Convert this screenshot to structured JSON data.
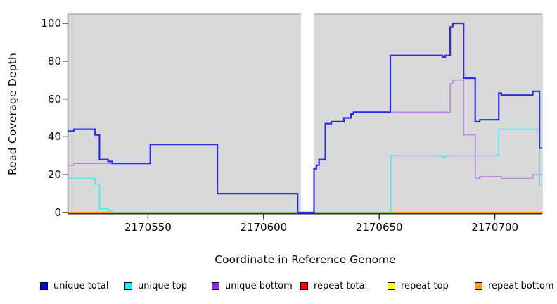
{
  "figure": {
    "y_axis_title": "Read Coverage Depth",
    "x_axis_title": "Coordinate in Reference Genome"
  },
  "legend": {
    "position": "bottom",
    "items": [
      {
        "label": "unique total",
        "color": "#0000ff"
      },
      {
        "label": "unique top",
        "color": "#00ffff"
      },
      {
        "label": "unique bottom",
        "color": "#8a2be2"
      },
      {
        "label": "repeat total",
        "color": "#ff0000"
      },
      {
        "label": "repeat top",
        "color": "#ffff00"
      },
      {
        "label": "repeat bottom",
        "color": "#ffa500"
      }
    ]
  },
  "chart_data": {
    "type": "line",
    "subtype": "step-coverage",
    "title": "",
    "xlabel": "Coordinate in Reference Genome",
    "ylabel": "Read Coverage Depth",
    "x_range": [
      2170515.5,
      2170720.5
    ],
    "y_range": [
      0,
      104.8
    ],
    "x_ticks": [
      2170550,
      2170600,
      2170650,
      2170700
    ],
    "y_ticks": [
      0,
      20,
      40,
      60,
      80,
      100
    ],
    "grid": false,
    "legend_position": "bottom",
    "colors": {
      "plot_background": "#d9d9d9",
      "figure_background": "#ffffff",
      "axis": "#1d1d1d",
      "border_top": "#b2b2b2",
      "border_right": "#c9c9c9",
      "gap_band": "#ffffff"
    },
    "gap_region": [
      2170616.2,
      2170621.8
    ],
    "series": [
      {
        "name": "repeat total",
        "color": "#dd0000",
        "width": 1.5,
        "note": "coverage 0 everywhere, hidden under other baseline lines",
        "paths": [
          [
            [
              2170515.5,
              0
            ],
            [
              2170720.5,
              0
            ]
          ]
        ]
      },
      {
        "name": "repeat top",
        "color": "#ffff00",
        "width": 1.5,
        "note": "coverage 0 everywhere, hidden under other baseline lines",
        "paths": [
          [
            [
              2170515.5,
              0
            ],
            [
              2170720.5,
              0
            ]
          ]
        ]
      },
      {
        "name": "baseline overlap (unique top + repeat top at 0)",
        "color": "#7cc27f",
        "width": 1.7,
        "note": "green blended line where cyan/yellow overlap at depth 0",
        "paths": [
          [
            [
              2170534.5,
              0
            ],
            [
              2170655,
              0
            ]
          ]
        ]
      },
      {
        "name": "repeat bottom",
        "color": "#ff9e05",
        "width": 2.2,
        "paths": [
          [
            [
              2170515.5,
              0
            ],
            [
              2170534.5,
              0
            ]
          ],
          [
            [
              2170655,
              0
            ],
            [
              2170720.5,
              0
            ]
          ]
        ]
      },
      {
        "name": "unique bottom",
        "color": "#b78ae0",
        "width": 1.7,
        "paths": [
          [
            [
              2170515.5,
              25
            ],
            [
              2170518,
              26
            ],
            [
              2170551,
              36
            ],
            [
              2170580,
              10
            ],
            [
              2170614.7,
              0
            ],
            [
              2170621.8,
              23
            ],
            [
              2170622.8,
              25
            ],
            [
              2170624,
              28
            ],
            [
              2170626.7,
              47
            ],
            [
              2170629.3,
              48
            ],
            [
              2170634.7,
              50
            ],
            [
              2170637.8,
              52
            ],
            [
              2170638.9,
              53
            ],
            [
              2170680.7,
              68
            ],
            [
              2170681.8,
              70
            ],
            [
              2170686.5,
              41
            ],
            [
              2170691.5,
              18
            ],
            [
              2170693.5,
              19
            ],
            [
              2170702.8,
              18
            ],
            [
              2170716.4,
              20
            ],
            [
              2170720.5,
              20
            ]
          ]
        ]
      },
      {
        "name": "unique top",
        "color": "#50e3ea",
        "width": 1.7,
        "paths": [
          [
            [
              2170515.5,
              18
            ],
            [
              2170527,
              15
            ],
            [
              2170529,
              2
            ],
            [
              2170532.7,
              1
            ],
            [
              2170534.5,
              0
            ]
          ],
          [
            [
              2170655,
              0
            ],
            [
              2170655,
              30
            ],
            [
              2170677.3,
              29
            ],
            [
              2170678.6,
              30
            ],
            [
              2170701.7,
              44
            ],
            [
              2170719.3,
              14
            ],
            [
              2170720.5,
              14
            ]
          ]
        ]
      },
      {
        "name": "unique total",
        "color": "#2b2be0",
        "width": 2.2,
        "paths": [
          [
            [
              2170515.5,
              43
            ],
            [
              2170518,
              44
            ],
            [
              2170527,
              41
            ],
            [
              2170529,
              28
            ],
            [
              2170532.7,
              27
            ],
            [
              2170534.5,
              26
            ],
            [
              2170551,
              36
            ],
            [
              2170580,
              10
            ],
            [
              2170614.7,
              0
            ],
            [
              2170621.8,
              23
            ],
            [
              2170622.8,
              25
            ],
            [
              2170624,
              28
            ],
            [
              2170626.7,
              47
            ],
            [
              2170629.3,
              48
            ],
            [
              2170634.7,
              50
            ],
            [
              2170637.8,
              52
            ],
            [
              2170638.9,
              53
            ],
            [
              2170654.8,
              83
            ],
            [
              2170677.3,
              82
            ],
            [
              2170678.6,
              83
            ],
            [
              2170680.7,
              98
            ],
            [
              2170681.8,
              100
            ],
            [
              2170686.5,
              71
            ],
            [
              2170691.5,
              48
            ],
            [
              2170693.5,
              49
            ],
            [
              2170701.7,
              63
            ],
            [
              2170702.8,
              62
            ],
            [
              2170716.4,
              64
            ],
            [
              2170719.3,
              34
            ],
            [
              2170720.5,
              34
            ]
          ]
        ]
      }
    ]
  }
}
